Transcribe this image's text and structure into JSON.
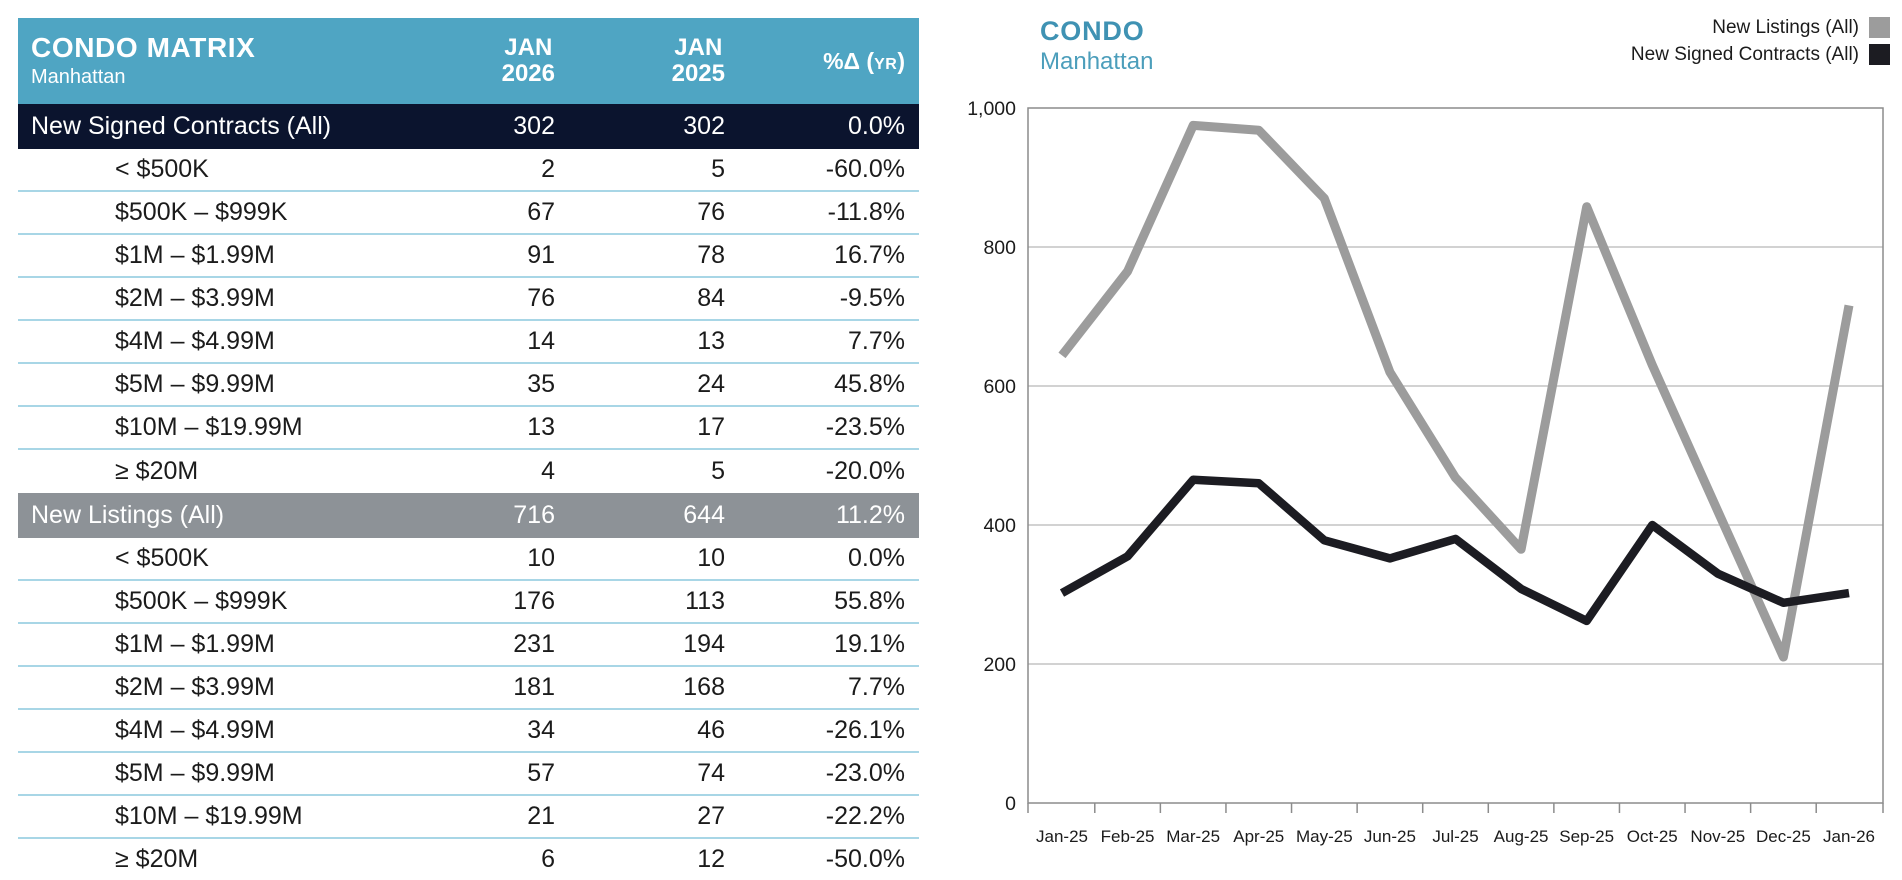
{
  "table": {
    "title": "CONDO MATRIX",
    "subtitle": "Manhattan",
    "col_2026": {
      "line1": "JAN",
      "line2": "2026"
    },
    "col_2025": {
      "line1": "JAN",
      "line2": "2025"
    },
    "pct_col": {
      "prefix": "%Δ (",
      "small": "yr",
      "suffix": ")"
    },
    "sections": [
      {
        "label": "New Signed Contracts (All)",
        "v2026": "302",
        "v2025": "302",
        "pct": "0.0%",
        "style": "navy",
        "rows": [
          {
            "label": "< $500K",
            "v2026": "2",
            "v2025": "5",
            "pct": "-60.0%"
          },
          {
            "label": "$500K – $999K",
            "v2026": "67",
            "v2025": "76",
            "pct": "-11.8%"
          },
          {
            "label": "$1M – $1.99M",
            "v2026": "91",
            "v2025": "78",
            "pct": "16.7%"
          },
          {
            "label": "$2M – $3.99M",
            "v2026": "76",
            "v2025": "84",
            "pct": "-9.5%"
          },
          {
            "label": "$4M – $4.99M",
            "v2026": "14",
            "v2025": "13",
            "pct": "7.7%"
          },
          {
            "label": "$5M – $9.99M",
            "v2026": "35",
            "v2025": "24",
            "pct": "45.8%"
          },
          {
            "label": "$10M – $19.99M",
            "v2026": "13",
            "v2025": "17",
            "pct": "-23.5%"
          },
          {
            "label": "≥ $20M",
            "v2026": "4",
            "v2025": "5",
            "pct": "-20.0%"
          }
        ]
      },
      {
        "label": "New Listings (All)",
        "v2026": "716",
        "v2025": "644",
        "pct": "11.2%",
        "style": "gray",
        "rows": [
          {
            "label": "< $500K",
            "v2026": "10",
            "v2025": "10",
            "pct": "0.0%"
          },
          {
            "label": "$500K – $999K",
            "v2026": "176",
            "v2025": "113",
            "pct": "55.8%"
          },
          {
            "label": "$1M – $1.99M",
            "v2026": "231",
            "v2025": "194",
            "pct": "19.1%"
          },
          {
            "label": "$2M – $3.99M",
            "v2026": "181",
            "v2025": "168",
            "pct": "7.7%"
          },
          {
            "label": "$4M – $4.99M",
            "v2026": "34",
            "v2025": "46",
            "pct": "-26.1%"
          },
          {
            "label": "$5M – $9.99M",
            "v2026": "57",
            "v2025": "74",
            "pct": "-23.0%"
          },
          {
            "label": "$10M – $19.99M",
            "v2026": "21",
            "v2025": "27",
            "pct": "-22.2%"
          },
          {
            "label": "≥ $20M",
            "v2026": "6",
            "v2025": "12",
            "pct": "-50.0%"
          }
        ]
      }
    ]
  },
  "chart": {
    "title": "CONDO",
    "subtitle": "Manhattan",
    "accent_color": "#3F92B3"
  },
  "chart_data": {
    "type": "line",
    "title": "CONDO Manhattan",
    "x": [
      "Jan-25",
      "Feb-25",
      "Mar-25",
      "Apr-25",
      "May-25",
      "Jun-25",
      "Jul-25",
      "Aug-25",
      "Sep-25",
      "Oct-25",
      "Nov-25",
      "Dec-25",
      "Jan-26"
    ],
    "series": [
      {
        "name": "New Listings (All)",
        "color": "#9C9C9C",
        "values": [
          644,
          765,
          975,
          968,
          870,
          620,
          468,
          365,
          858,
          630,
          420,
          210,
          716
        ]
      },
      {
        "name": "New Signed Contracts (All)",
        "color": "#1C1C22",
        "values": [
          302,
          355,
          465,
          460,
          378,
          352,
          380,
          308,
          262,
          400,
          330,
          288,
          302
        ]
      }
    ],
    "ylim": [
      0,
      1000
    ],
    "yticks": [
      0,
      200,
      400,
      600,
      800,
      1000
    ],
    "ytick_labels": [
      "0",
      "200",
      "400",
      "600",
      "800",
      "1,000"
    ],
    "grid": true,
    "legend_position": "top-right",
    "gridline_color": "#B7B7B7",
    "axis_color": "#8C8C8C"
  }
}
